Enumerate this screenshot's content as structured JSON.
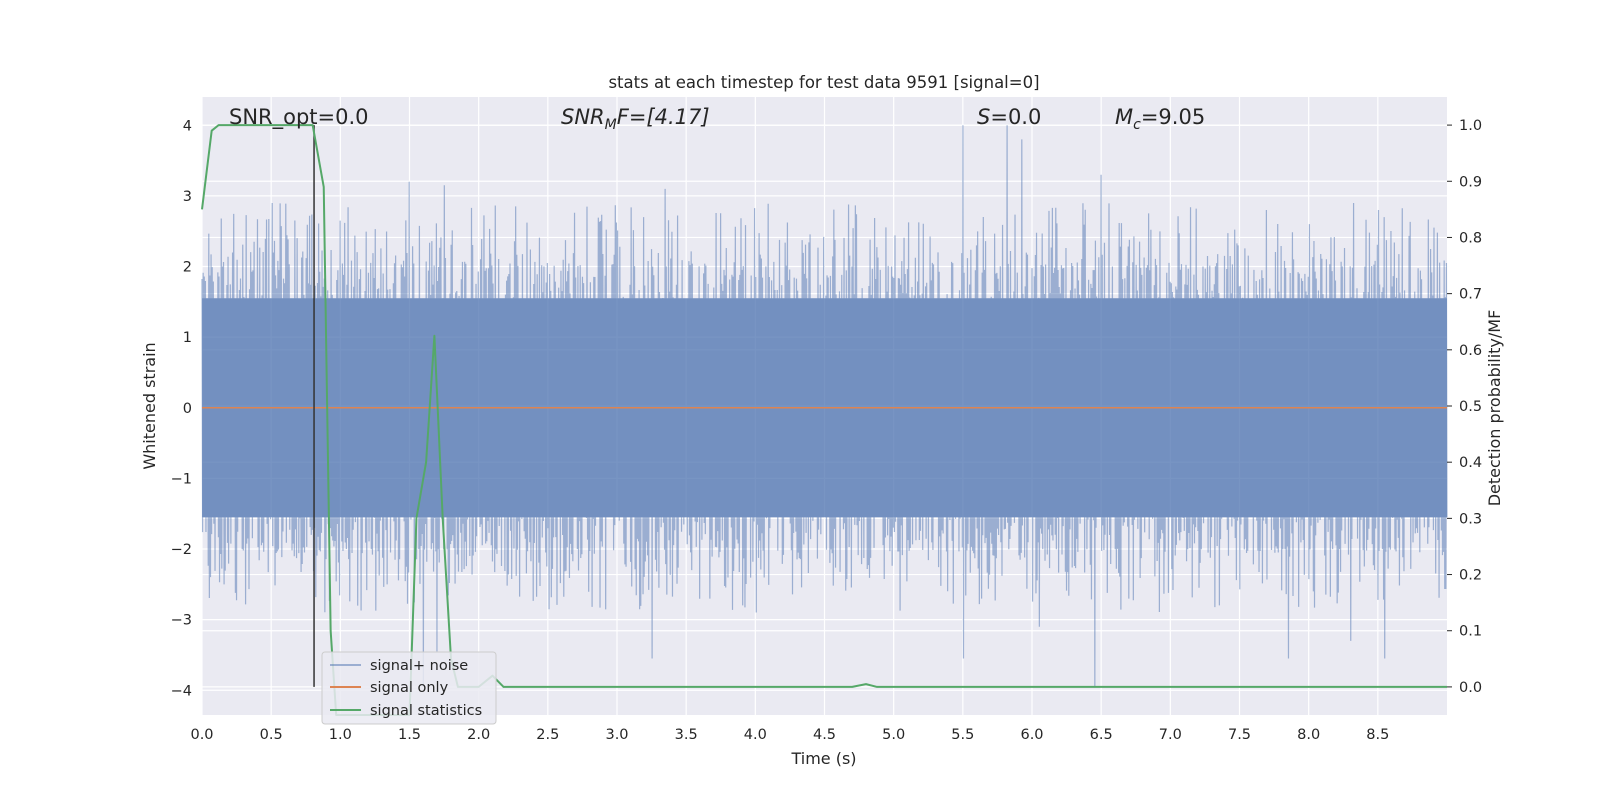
{
  "chart_data": {
    "type": "line",
    "title": "stats at each timestep for test data 9591 [signal=0]",
    "xlabel": "Time (s)",
    "ylabel": "Whitened strain",
    "y2label": "Detection probability/MF",
    "xlim": [
      0.0,
      9.0
    ],
    "ylim": [
      -4.35,
      4.4
    ],
    "y2lim": [
      -0.05,
      1.05
    ],
    "x_ticks": [
      "0.0",
      "0.5",
      "1.0",
      "1.5",
      "2.0",
      "2.5",
      "3.0",
      "3.5",
      "4.0",
      "4.5",
      "5.0",
      "5.5",
      "6.0",
      "6.5",
      "7.0",
      "7.5",
      "8.0",
      "8.5"
    ],
    "y_ticks": [
      "4",
      "3",
      "2",
      "1",
      "0",
      "−1",
      "−2",
      "−3",
      "−4"
    ],
    "y2_ticks": [
      "1.0",
      "0.9",
      "0.8",
      "0.7",
      "0.6",
      "0.5",
      "0.4",
      "0.3",
      "0.2",
      "0.1",
      "0.0"
    ],
    "grid": true,
    "legend_position": "lower-left",
    "annotations": {
      "snr_opt": "SNR_opt=0.0",
      "snr_mf_main": "SNR",
      "snr_mf_sub": "M",
      "snr_mf_rest": "F=[4.17]",
      "s_main": "S",
      "s_rest": "=0.0",
      "mc_main": "M",
      "mc_sub": "c",
      "mc_rest": "=9.05"
    },
    "marker_line_x": 0.81,
    "series": [
      {
        "name": "signal+ noise",
        "axis": "left",
        "color": "#4c72b0",
        "envelope": {
          "core_abs": 1.55,
          "typical_peak_range": [
            2.0,
            2.9
          ],
          "max_peaks": [
            {
              "x": 5.5,
              "y": 4.0
            },
            {
              "x": 5.82,
              "y": 4.0
            },
            {
              "x": 5.93,
              "y": 3.8
            },
            {
              "x": 6.5,
              "y": 3.3
            },
            {
              "x": 1.5,
              "y": 3.2
            },
            {
              "x": 1.75,
              "y": 3.15
            },
            {
              "x": 3.35,
              "y": 3.1
            },
            {
              "x": 0.51,
              "y": 2.9
            },
            {
              "x": 7.7,
              "y": 2.8
            }
          ],
          "min_peaks": [
            {
              "x": 6.45,
              "y": -3.95
            },
            {
              "x": 1.6,
              "y": -3.95
            },
            {
              "x": 3.25,
              "y": -3.55
            },
            {
              "x": 5.5,
              "y": -3.55
            },
            {
              "x": 7.85,
              "y": -3.55
            },
            {
              "x": 8.55,
              "y": -3.55
            },
            {
              "x": 1.7,
              "y": -3.45
            },
            {
              "x": 8.3,
              "y": -3.3
            },
            {
              "x": 6.05,
              "y": -3.1
            }
          ]
        }
      },
      {
        "name": "signal only",
        "axis": "left",
        "color": "#dd8452",
        "x": [
          0.0,
          9.0
        ],
        "y": [
          0.0,
          0.0
        ]
      },
      {
        "name": "signal statistics",
        "axis": "right",
        "color": "#55a868",
        "x": [
          0.0,
          0.07,
          0.12,
          0.2,
          0.3,
          0.5,
          0.7,
          0.8,
          0.88,
          0.93,
          0.97,
          1.0,
          1.5,
          1.55,
          1.62,
          1.68,
          1.74,
          1.8,
          1.85,
          2.0,
          2.1,
          2.18,
          2.5,
          3.0,
          4.0,
          4.7,
          4.8,
          4.88,
          5.0,
          6.0,
          7.0,
          8.0,
          9.0
        ],
        "y": [
          0.85,
          0.99,
          1.0,
          1.0,
          1.0,
          1.0,
          1.0,
          1.0,
          0.89,
          0.1,
          -0.05,
          -0.05,
          -0.05,
          0.3,
          0.4,
          0.625,
          0.3,
          0.05,
          0.0,
          0.0,
          0.02,
          0.0,
          0.0,
          0.0,
          0.0,
          0.0,
          0.005,
          0.0,
          0.0,
          0.0,
          0.0,
          0.0,
          0.0
        ]
      }
    ]
  }
}
